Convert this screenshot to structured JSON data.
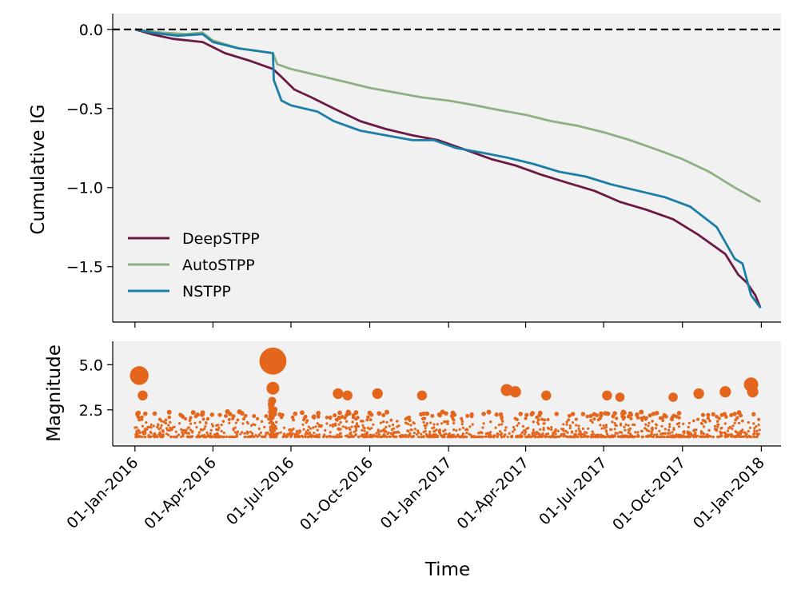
{
  "chart_data": [
    {
      "type": "line",
      "ylabel": "Cumulative IG",
      "xlabel": "",
      "ylim": [
        -1.85,
        0.1
      ],
      "yticks": [
        0.0,
        -0.5,
        -1.0,
        -1.5
      ],
      "ytick_labels": [
        "0.0",
        "−0.5",
        "−1.0",
        "−1.5"
      ],
      "x_domain": [
        "2015-12-06",
        "2018-01-24"
      ],
      "reference_line": {
        "y": 0.0,
        "style": "dashed",
        "color": "#000000"
      },
      "legend": {
        "placement": "lower-left",
        "entries": [
          "DeepSTPP",
          "AutoSTPP",
          "NSTPP"
        ]
      },
      "series": [
        {
          "name": "DeepSTPP",
          "color": "#6b1a44",
          "x": [
            "2016-01-01",
            "2016-01-20",
            "2016-02-15",
            "2016-03-20",
            "2016-04-15",
            "2016-05-15",
            "2016-06-10",
            "2016-06-20",
            "2016-07-05",
            "2016-07-25",
            "2016-08-20",
            "2016-09-20",
            "2016-10-20",
            "2016-11-20",
            "2016-12-20",
            "2017-01-20",
            "2017-02-20",
            "2017-03-20",
            "2017-04-20",
            "2017-05-20",
            "2017-06-20",
            "2017-07-20",
            "2017-08-20",
            "2017-09-20",
            "2017-10-20",
            "2017-11-20",
            "2017-12-05",
            "2017-12-15",
            "2017-12-25",
            "2017-12-31"
          ],
          "y": [
            0.0,
            -0.03,
            -0.06,
            -0.08,
            -0.15,
            -0.2,
            -0.25,
            -0.3,
            -0.38,
            -0.43,
            -0.5,
            -0.58,
            -0.63,
            -0.67,
            -0.7,
            -0.76,
            -0.82,
            -0.86,
            -0.92,
            -0.97,
            -1.02,
            -1.09,
            -1.14,
            -1.2,
            -1.3,
            -1.42,
            -1.55,
            -1.6,
            -1.68,
            -1.76
          ]
        },
        {
          "name": "AutoSTPP",
          "color": "#8db082",
          "x": [
            "2016-01-01",
            "2016-02-01",
            "2016-03-01",
            "2016-03-20",
            "2016-04-01",
            "2016-05-01",
            "2016-06-10",
            "2016-06-15",
            "2016-07-01",
            "2016-08-01",
            "2016-09-01",
            "2016-10-01",
            "2016-11-01",
            "2016-12-01",
            "2017-01-01",
            "2017-02-01",
            "2017-03-01",
            "2017-04-01",
            "2017-05-01",
            "2017-06-01",
            "2017-07-01",
            "2017-08-01",
            "2017-09-01",
            "2017-10-01",
            "2017-11-01",
            "2017-12-01",
            "2017-12-31"
          ],
          "y": [
            0.0,
            -0.02,
            -0.03,
            -0.02,
            -0.07,
            -0.12,
            -0.15,
            -0.22,
            -0.25,
            -0.29,
            -0.33,
            -0.37,
            -0.4,
            -0.43,
            -0.45,
            -0.48,
            -0.51,
            -0.54,
            -0.58,
            -0.61,
            -0.65,
            -0.7,
            -0.76,
            -0.82,
            -0.9,
            -1.0,
            -1.09
          ]
        },
        {
          "name": "NSTPP",
          "color": "#1a7ea6",
          "x": [
            "2016-01-01",
            "2016-01-20",
            "2016-02-20",
            "2016-03-20",
            "2016-04-01",
            "2016-05-01",
            "2016-06-10",
            "2016-06-11",
            "2016-06-20",
            "2016-07-01",
            "2016-08-01",
            "2016-08-20",
            "2016-09-20",
            "2016-10-20",
            "2016-11-20",
            "2016-12-15",
            "2017-01-10",
            "2017-02-10",
            "2017-03-10",
            "2017-04-10",
            "2017-05-10",
            "2017-06-10",
            "2017-07-10",
            "2017-08-10",
            "2017-09-10",
            "2017-10-10",
            "2017-11-10",
            "2017-12-01",
            "2017-12-10",
            "2017-12-20",
            "2017-12-31"
          ],
          "y": [
            0.0,
            -0.02,
            -0.04,
            -0.03,
            -0.08,
            -0.12,
            -0.15,
            -0.32,
            -0.45,
            -0.48,
            -0.52,
            -0.58,
            -0.64,
            -0.67,
            -0.7,
            -0.7,
            -0.75,
            -0.78,
            -0.81,
            -0.85,
            -0.9,
            -0.93,
            -0.98,
            -1.02,
            -1.06,
            -1.12,
            -1.25,
            -1.45,
            -1.48,
            -1.68,
            -1.76
          ]
        }
      ]
    },
    {
      "type": "scatter",
      "ylabel": "Magnitude",
      "xlabel": "Time",
      "ylim": [
        0.5,
        6.3
      ],
      "yticks": [
        2.5,
        5.0
      ],
      "ytick_labels": [
        "2.5",
        "5.0"
      ],
      "x_domain": [
        "2015-12-06",
        "2018-01-24"
      ],
      "xticks": [
        "2016-01-01",
        "2016-04-01",
        "2016-07-01",
        "2016-10-01",
        "2017-01-01",
        "2017-04-01",
        "2017-07-01",
        "2017-10-01",
        "2018-01-01"
      ],
      "xtick_labels": [
        "01-Jan-2016",
        "01-Apr-2016",
        "01-Jul-2016",
        "01-Oct-2016",
        "01-Jan-2017",
        "01-Apr-2017",
        "01-Jul-2017",
        "01-Oct-2017",
        "01-Jan-2018"
      ],
      "color": "#e3661c",
      "notable_events": [
        {
          "date": "2016-01-06",
          "magnitude": 4.4
        },
        {
          "date": "2016-01-10",
          "magnitude": 3.3
        },
        {
          "date": "2016-06-10",
          "magnitude": 5.2
        },
        {
          "date": "2016-06-10",
          "magnitude": 3.7
        },
        {
          "date": "2016-06-09",
          "magnitude": 3.0
        },
        {
          "date": "2016-06-08",
          "magnitude": 2.8
        },
        {
          "date": "2016-08-25",
          "magnitude": 3.4
        },
        {
          "date": "2016-09-05",
          "magnitude": 3.3
        },
        {
          "date": "2016-10-10",
          "magnitude": 3.4
        },
        {
          "date": "2016-12-01",
          "magnitude": 3.3
        },
        {
          "date": "2017-03-10",
          "magnitude": 3.6
        },
        {
          "date": "2017-03-20",
          "magnitude": 3.5
        },
        {
          "date": "2017-04-25",
          "magnitude": 3.3
        },
        {
          "date": "2017-07-05",
          "magnitude": 3.3
        },
        {
          "date": "2017-07-20",
          "magnitude": 3.2
        },
        {
          "date": "2017-09-20",
          "magnitude": 3.2
        },
        {
          "date": "2017-10-20",
          "magnitude": 3.4
        },
        {
          "date": "2017-11-20",
          "magnitude": 3.5
        },
        {
          "date": "2017-12-20",
          "magnitude": 3.9
        },
        {
          "date": "2017-12-22",
          "magnitude": 3.5
        }
      ],
      "background_events": {
        "count": 1500,
        "magnitude_range": [
          1.0,
          2.4
        ],
        "date_range": [
          "2016-01-01",
          "2017-12-31"
        ],
        "note": "dense cluster of small events"
      }
    }
  ]
}
